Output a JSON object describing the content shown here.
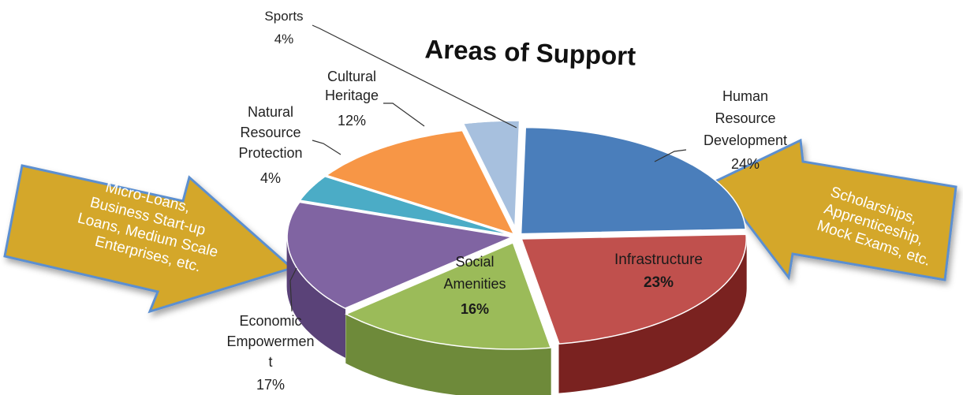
{
  "chart_data": {
    "type": "pie",
    "title": "Areas of Support",
    "slices": [
      {
        "name": "Human Resource Development",
        "value": 24,
        "value_label": "24%",
        "color": "#4A7EBB",
        "side": "#2F5A8E"
      },
      {
        "name": "Infrastructure",
        "value": 23,
        "value_label": "23%",
        "color": "#C0504D",
        "side": "#7A2220"
      },
      {
        "name": "Social Amenities",
        "value": 16,
        "value_label": "16%",
        "color": "#9BBB59",
        "side": "#6E8A3A"
      },
      {
        "name": "Economic Empowerment",
        "value": 17,
        "value_label": "17%",
        "color": "#8064A2",
        "side": "#5A4278"
      },
      {
        "name": "Natural Resource Protection",
        "value": 4,
        "value_label": "4%",
        "color": "#4BACC6",
        "side": "#2F7F94"
      },
      {
        "name": "Cultural Heritage",
        "value": 12,
        "value_label": "12%",
        "color": "#F79646",
        "side": "#B8651F"
      },
      {
        "name": "Sports",
        "value": 4,
        "value_label": "4%",
        "color": "#A7C0DE",
        "side": "#7891B0"
      }
    ],
    "label_text": {
      "human": [
        "Human",
        "Resource",
        "Development"
      ],
      "infra": [
        "Infrastructure"
      ],
      "social": [
        "Social",
        "Amenities"
      ],
      "econ": [
        "Economic",
        "Empowermen",
        "t"
      ],
      "natural": [
        "Natural",
        "Resource",
        "Protection"
      ],
      "cultural": [
        "Cultural",
        "Heritage"
      ],
      "sports": [
        "Sports"
      ]
    }
  },
  "callouts": {
    "left": {
      "lines": [
        "Micro-Loans,",
        "Business Start-up",
        "Loans, Medium Scale",
        "Enterprises, etc."
      ],
      "color": "#D4A72C"
    },
    "right": {
      "lines": [
        "Scholarships,",
        "Apprenticeship,",
        "Mock Exams, etc."
      ],
      "color": "#D4A72C"
    }
  }
}
